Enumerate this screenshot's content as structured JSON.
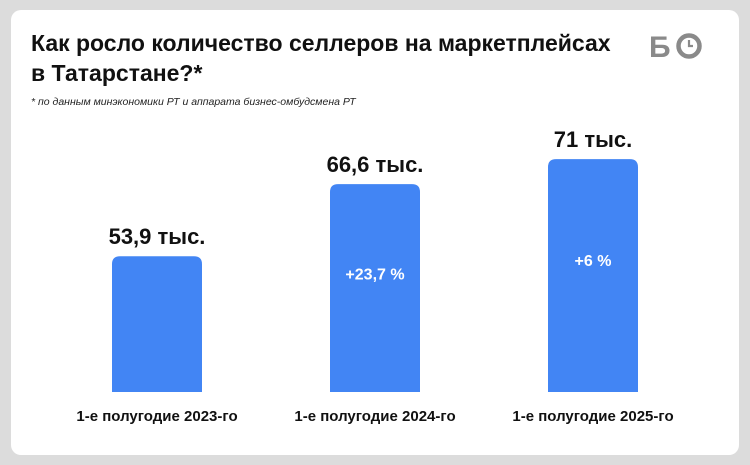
{
  "header": {
    "title_line1": "Как росло количество селлеров на маркетплейсах",
    "title_line2": "в Татарстане?*",
    "note": "* по данным минэкономики РТ и аппарата бизнес-омбудсмена РТ"
  },
  "logo": {
    "text": "БО",
    "color": "#8a8a8a"
  },
  "colors": {
    "bar": "#4285f4",
    "card": "#ffffff",
    "background": "#dcdcdc"
  },
  "chart_data": {
    "type": "bar",
    "categories": [
      "1-е полугодие 2023-го",
      "1-е полугодие 2024-го",
      "1-е полугодие 2025-го"
    ],
    "values": [
      53.9,
      66.6,
      71
    ],
    "value_labels": [
      "53,9 тыс.",
      "66,6 тыс.",
      "71 тыс."
    ],
    "growth_labels": [
      "",
      "+23,7 %",
      "+6 %"
    ],
    "unit": "тыс.",
    "title": "Как росло количество селлеров на маркетплейсах в Татарстане?*",
    "xlabel": "",
    "ylabel": "",
    "grid": false,
    "legend": "none"
  }
}
